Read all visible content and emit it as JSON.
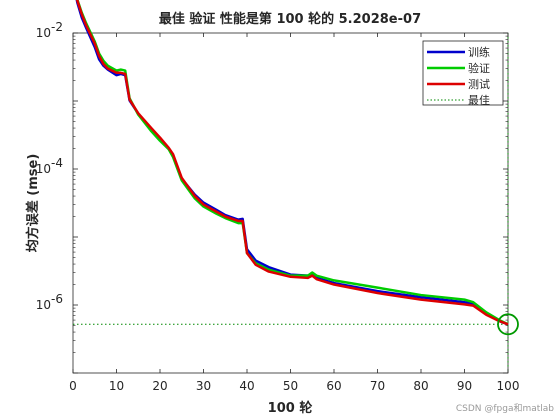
{
  "chart_data": {
    "type": "line",
    "title": "最佳 验证 性能是第 100 轮的 5.2028e-07",
    "xlabel": "100 轮",
    "ylabel": "均方误差 (mse)",
    "xlim": [
      0,
      100
    ],
    "ylim_log10": [
      -7,
      -2
    ],
    "y_scale": "log",
    "x_ticks": [
      0,
      10,
      20,
      30,
      40,
      50,
      60,
      70,
      80,
      90,
      100
    ],
    "y_ticks": [
      1e-06,
      0.0001,
      0.01
    ],
    "y_tick_labels": [
      "10",
      "10",
      "10"
    ],
    "y_tick_exponents": [
      "-6",
      "-4",
      "-2"
    ],
    "legend_position": "top-right",
    "series": [
      {
        "name": "训练",
        "color": "#0000cc",
        "x": [
          0,
          1,
          2,
          3,
          5,
          6,
          7,
          8,
          10,
          11,
          12,
          13,
          15,
          18,
          20,
          22,
          23,
          25,
          28,
          30,
          33,
          35,
          38,
          39,
          40,
          42,
          45,
          50,
          54,
          55,
          56,
          60,
          70,
          80,
          90,
          92,
          95,
          98,
          100
        ],
        "y": [
          0.058,
          0.028,
          0.017,
          0.012,
          0.0062,
          0.0041,
          0.0033,
          0.0029,
          0.0024,
          0.0025,
          0.0024,
          0.00102,
          0.00065,
          0.00039,
          0.00028,
          0.0002,
          0.00016,
          7.2e-05,
          4.2e-05,
          3.2e-05,
          2.5e-05,
          2.1e-05,
          1.8e-05,
          1.85e-05,
          6.6e-06,
          4.5e-06,
          3.6e-06,
          2.8e-06,
          2.7e-06,
          2.9e-06,
          2.5e-06,
          2.1e-06,
          1.6e-06,
          1.3e-06,
          1.1e-06,
          1.05e-06,
          7.5e-07,
          5.8e-07,
          5.2e-07
        ]
      },
      {
        "name": "验证",
        "color": "#00cc00",
        "x": [
          0,
          1,
          2,
          3,
          5,
          6,
          7,
          8,
          10,
          11,
          12,
          13,
          15,
          18,
          20,
          22,
          23,
          25,
          28,
          30,
          33,
          35,
          38,
          39,
          40,
          42,
          45,
          50,
          54,
          55,
          56,
          60,
          70,
          80,
          90,
          92,
          95,
          98,
          100
        ],
        "y": [
          0.058,
          0.031,
          0.02,
          0.014,
          0.0075,
          0.005,
          0.0039,
          0.0033,
          0.0028,
          0.0029,
          0.0028,
          0.0011,
          0.00063,
          0.00036,
          0.00026,
          0.000195,
          0.00015,
          6.8e-05,
          3.7e-05,
          2.8e-05,
          2.2e-05,
          1.9e-05,
          1.6e-05,
          1.6e-05,
          5.8e-06,
          4.1e-06,
          3.3e-06,
          2.7e-06,
          2.7e-06,
          3e-06,
          2.7e-06,
          2.3e-06,
          1.8e-06,
          1.4e-06,
          1.2e-06,
          1.1e-06,
          7.8e-07,
          6e-07,
          5.2e-07
        ]
      },
      {
        "name": "测试",
        "color": "#dd0000",
        "x": [
          0,
          1,
          2,
          3,
          5,
          6,
          7,
          8,
          10,
          11,
          12,
          13,
          15,
          18,
          20,
          22,
          23,
          25,
          28,
          30,
          33,
          35,
          38,
          39,
          40,
          42,
          45,
          50,
          54,
          55,
          56,
          60,
          70,
          80,
          90,
          92,
          95,
          98,
          100
        ],
        "y": [
          0.056,
          0.03,
          0.019,
          0.013,
          0.007,
          0.0046,
          0.0035,
          0.003,
          0.0026,
          0.0026,
          0.0025,
          0.00105,
          0.00066,
          0.0004,
          0.00029,
          0.000205,
          0.000165,
          7.4e-05,
          4e-05,
          3e-05,
          2.35e-05,
          2e-05,
          1.72e-05,
          1.72e-05,
          5.8e-06,
          3.9e-06,
          3.1e-06,
          2.6e-06,
          2.5e-06,
          2.7e-06,
          2.4e-06,
          2e-06,
          1.5e-06,
          1.2e-06,
          1.02e-06,
          9.8e-07,
          7.2e-07,
          5.8e-07,
          5.2e-07
        ]
      }
    ],
    "best": {
      "name": "最佳",
      "x": 100,
      "y": 5.2028e-07,
      "line_color": "#008800",
      "marker_color": "#009900"
    }
  },
  "watermark": "CSDN @fpga和matlab"
}
